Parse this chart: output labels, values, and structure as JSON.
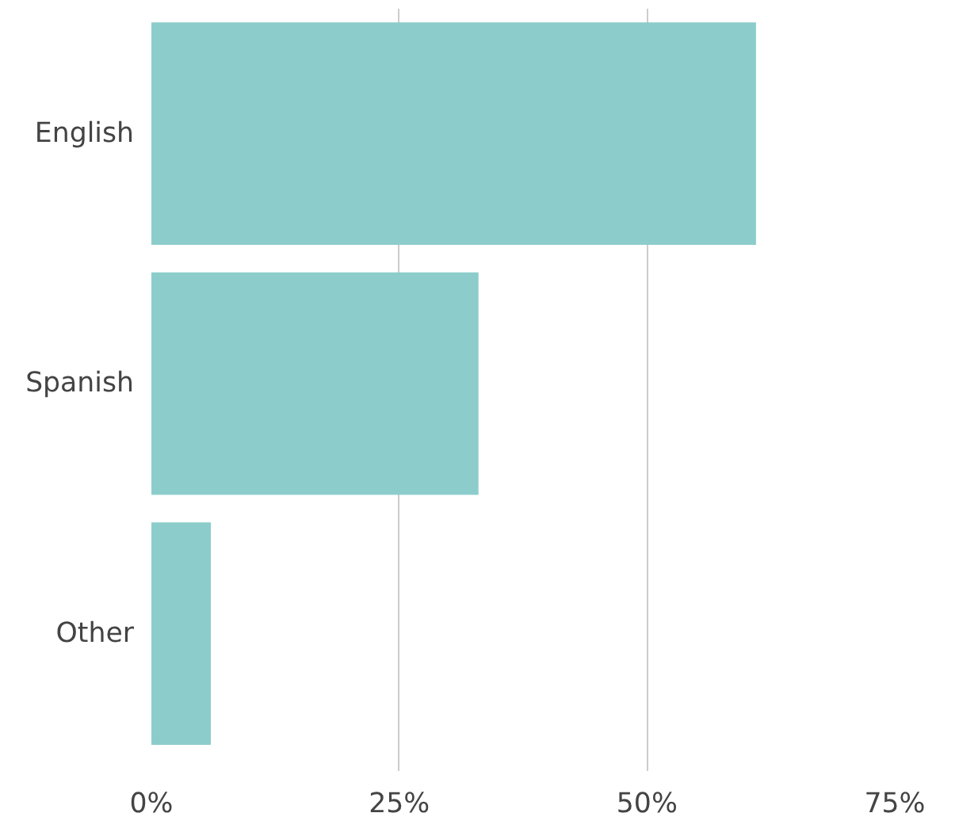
{
  "chart_data": {
    "type": "bar",
    "orientation": "horizontal",
    "categories": [
      "English",
      "Spanish",
      "Other"
    ],
    "values": [
      61,
      33,
      6
    ],
    "color": "#8ccdcb",
    "xlim": [
      0,
      75
    ],
    "xticks": [
      {
        "value": 0,
        "label": "0%"
      },
      {
        "value": 25,
        "label": "25%"
      },
      {
        "value": 50,
        "label": "50%"
      },
      {
        "value": 75,
        "label": "75%"
      }
    ],
    "grid": "x"
  }
}
